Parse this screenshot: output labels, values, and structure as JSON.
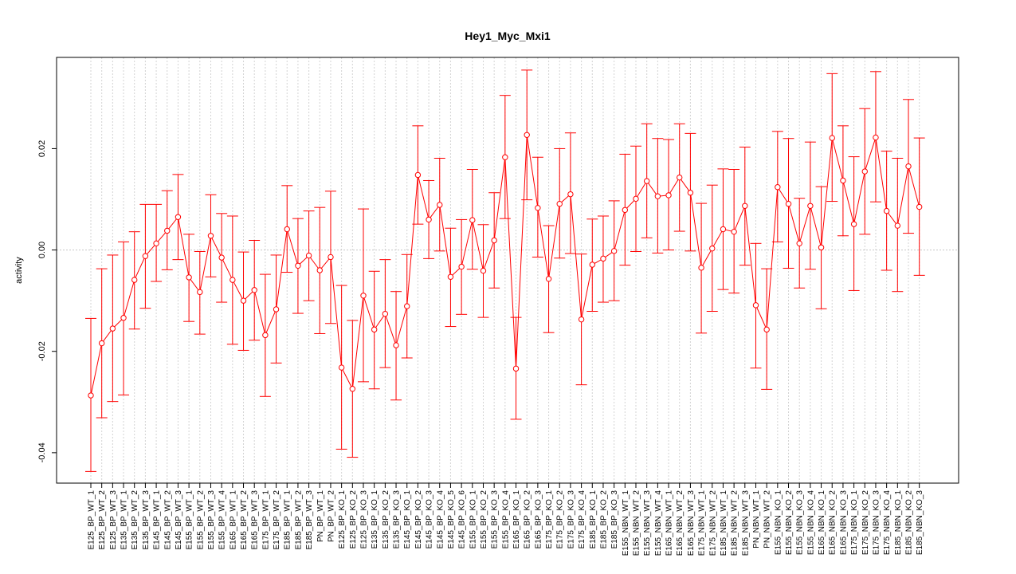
{
  "chart_data": {
    "type": "line",
    "title": "Hey1_Myc_Mxi1",
    "xlabel": "",
    "ylabel": "activity",
    "ylim": [
      -0.046,
      0.038
    ],
    "yticks": [
      -0.04,
      -0.02,
      0.0,
      0.02
    ],
    "ytick_labels": [
      "-0.04",
      "-0.02",
      "0.00",
      "0.02"
    ],
    "grid": true,
    "colors": {
      "series": "#ff0000",
      "grid": "#d3d3d3",
      "zero_line": "#c8c8c8",
      "frame": "#000000"
    },
    "categories": [
      "E125_BP_WT_1",
      "E125_BP_WT_2",
      "E125_BP_WT_3",
      "E135_BP_WT_1",
      "E135_BP_WT_2",
      "E135_BP_WT_3",
      "E145_BP_WT_1",
      "E145_BP_WT_2",
      "E145_BP_WT_3",
      "E155_BP_WT_1",
      "E155_BP_WT_2",
      "E155_BP_WT_3",
      "E155_BP_WT_4",
      "E165_BP_WT_1",
      "E165_BP_WT_2",
      "E165_BP_WT_3",
      "E175_BP_WT_1",
      "E175_BP_WT_2",
      "E185_BP_WT_1",
      "E185_BP_WT_2",
      "E185_BP_WT_3",
      "PN_BP_WT_1",
      "PN_BP_WT_2",
      "E125_BP_KO_1",
      "E125_BP_KO_2",
      "E125_BP_KO_3",
      "E135_BP_KO_1",
      "E135_BP_KO_2",
      "E135_BP_KO_3",
      "E145_BP_KO_1",
      "E145_BP_KO_2",
      "E145_BP_KO_3",
      "E145_BP_KO_4",
      "E145_BP_KO_5",
      "E145_BP_KO_6",
      "E155_BP_KO_1",
      "E155_BP_KO_2",
      "E155_BP_KO_3",
      "E155_BP_KO_4",
      "E165_BP_KO_1",
      "E165_BP_KO_2",
      "E165_BP_KO_3",
      "E175_BP_KO_1",
      "E175_BP_KO_2",
      "E175_BP_KO_3",
      "E175_BP_KO_4",
      "E185_BP_KO_1",
      "E185_BP_KO_2",
      "E185_BP_KO_3",
      "E155_NBN_WT_1",
      "E155_NBN_WT_2",
      "E155_NBN_WT_3",
      "E155_NBN_WT_4",
      "E165_NBN_WT_1",
      "E165_NBN_WT_2",
      "E165_NBN_WT_3",
      "E175_NBN_WT_1",
      "E175_NBN_WT_2",
      "E185_NBN_WT_1",
      "E185_NBN_WT_2",
      "E185_NBN_WT_3",
      "PN_NBN_WT_1",
      "PN_NBN_WT_2",
      "E155_NBN_KO_1",
      "E155_NBN_KO_2",
      "E155_NBN_KO_3",
      "E155_NBN_KO_4",
      "E165_NBN_KO_1",
      "E165_NBN_KO_2",
      "E165_NBN_KO_3",
      "E175_NBN_KO_1",
      "E175_NBN_KO_2",
      "E175_NBN_KO_3",
      "E175_NBN_KO_4",
      "E185_NBN_KO_1",
      "E185_NBN_KO_2",
      "E185_NBN_KO_3"
    ],
    "values": [
      -0.0287,
      -0.0184,
      -0.0155,
      -0.0134,
      -0.0059,
      -0.0012,
      0.0013,
      0.0038,
      0.0065,
      -0.0054,
      -0.0083,
      0.0028,
      -0.0015,
      -0.0059,
      -0.01,
      -0.0079,
      -0.0168,
      -0.0117,
      0.0041,
      -0.0031,
      -0.0011,
      -0.004,
      -0.0014,
      -0.0232,
      -0.0274,
      -0.009,
      -0.0157,
      -0.0126,
      -0.0188,
      -0.0111,
      0.0148,
      0.006,
      0.0089,
      -0.0053,
      -0.0033,
      0.0059,
      -0.0041,
      0.0019,
      0.0183,
      -0.0234,
      0.0227,
      0.0083,
      -0.0057,
      0.0091,
      0.011,
      -0.0137,
      -0.0029,
      -0.0017,
      -0.0002,
      0.0079,
      0.0101,
      0.0136,
      0.0106,
      0.0108,
      0.0143,
      0.0113,
      -0.0035,
      0.0003,
      0.0041,
      0.0036,
      0.0087,
      -0.0109,
      -0.0157,
      0.0124,
      0.0091,
      0.0013,
      0.0087,
      0.0005,
      0.0221,
      0.0137,
      0.0051,
      0.0155,
      0.0222,
      0.0077,
      0.0048,
      0.0165,
      0.0085
    ],
    "error_upper": [
      -0.0135,
      -0.0037,
      -0.001,
      0.0016,
      0.0036,
      0.009,
      0.009,
      0.0117,
      0.0149,
      0.0031,
      -0.0003,
      0.0109,
      0.0072,
      0.0067,
      -0.0004,
      0.0019,
      -0.0048,
      -0.001,
      0.0127,
      0.0062,
      0.0077,
      0.0084,
      0.0116,
      -0.007,
      -0.0139,
      0.0081,
      -0.0042,
      -0.0019,
      -0.0082,
      -0.0009,
      0.0245,
      0.0137,
      0.0181,
      0.0043,
      0.006,
      0.0159,
      0.005,
      0.0113,
      0.0305,
      -0.0133,
      0.0355,
      0.0183,
      0.0048,
      0.02,
      0.0231,
      -0.0008,
      0.0061,
      0.0067,
      0.0097,
      0.0189,
      0.0205,
      0.0249,
      0.022,
      0.0218,
      0.0249,
      0.023,
      0.0092,
      0.0128,
      0.016,
      0.0159,
      0.0203,
      0.0013,
      -0.0037,
      0.0234,
      0.022,
      0.0102,
      0.0213,
      0.0125,
      0.0348,
      0.0245,
      0.0184,
      0.0279,
      0.0352,
      0.0195,
      0.0181,
      0.0297,
      0.0221
    ],
    "error_lower": [
      -0.0437,
      -0.0331,
      -0.0299,
      -0.0286,
      -0.0156,
      -0.0115,
      -0.0062,
      -0.0039,
      -0.0019,
      -0.0141,
      -0.0166,
      -0.0053,
      -0.0103,
      -0.0186,
      -0.0198,
      -0.0178,
      -0.0289,
      -0.0223,
      -0.0044,
      -0.0125,
      -0.01,
      -0.0165,
      -0.0145,
      -0.0393,
      -0.0409,
      -0.026,
      -0.0274,
      -0.0232,
      -0.0296,
      -0.0213,
      0.0051,
      -0.0017,
      -0.0002,
      -0.0151,
      -0.0127,
      -0.0038,
      -0.0133,
      -0.0075,
      0.0062,
      -0.0334,
      0.0099,
      -0.0014,
      -0.0163,
      -0.0016,
      -0.0007,
      -0.0266,
      -0.0121,
      -0.0103,
      -0.01,
      -0.003,
      -0.0003,
      0.0024,
      -0.0006,
      0.0,
      0.0037,
      -0.0002,
      -0.0164,
      -0.0121,
      -0.0078,
      -0.0085,
      -0.003,
      -0.0233,
      -0.0275,
      0.0016,
      -0.0036,
      -0.0075,
      -0.0038,
      -0.0116,
      0.0096,
      0.0028,
      -0.008,
      0.0031,
      0.0095,
      -0.004,
      -0.0082,
      0.0033,
      -0.005
    ]
  }
}
